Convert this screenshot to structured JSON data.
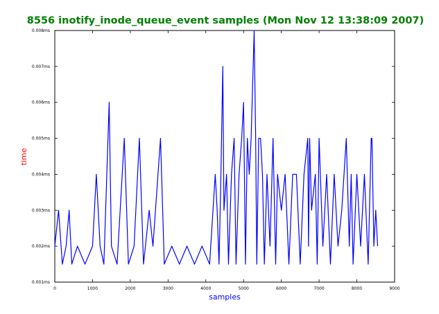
{
  "chart_data": {
    "type": "line",
    "title": "8556 inotify_inode_queue_event samples (Mon Nov 12 13:38:09 2007)",
    "xlabel": "samples",
    "ylabel": "time",
    "xlim": [
      0,
      9000
    ],
    "ylim": [
      0.001,
      0.008
    ],
    "x_ticks": [
      "0",
      "1000",
      "2000",
      "3000",
      "4000",
      "5000",
      "6000",
      "7000",
      "8000",
      "9000"
    ],
    "y_ticks": [
      "0.001ms",
      "0.002ms",
      "0.003ms",
      "0.004ms",
      "0.005ms",
      "0.006ms",
      "0.007ms",
      "0.008ms"
    ],
    "grid": false,
    "colors": {
      "line": "#0000ff",
      "title": "#008000",
      "xlabel": "#0000ff",
      "ylabel": "#ff0000"
    },
    "series": [
      {
        "x": [
          0,
          100,
          200,
          300,
          380,
          450,
          600,
          800,
          1000,
          1100,
          1200,
          1300,
          1440,
          1500,
          1650,
          1840,
          1950,
          2100,
          2240,
          2350,
          2500,
          2600,
          2800,
          2900,
          3100,
          3300,
          3500,
          3700,
          3900,
          4100,
          4250,
          4300,
          4350,
          4400,
          4450,
          4480,
          4550,
          4600,
          4680,
          4750,
          4800,
          4880,
          4950,
          5000,
          5050,
          5100,
          5150,
          5200,
          5280,
          5320,
          5350,
          5400,
          5450,
          5500,
          5550,
          5620,
          5700,
          5780,
          5850,
          5900,
          6000,
          6100,
          6200,
          6300,
          6400,
          6500,
          6600,
          6700,
          6720,
          6750,
          6800,
          6900,
          6950,
          7000,
          7100,
          7200,
          7300,
          7400,
          7500,
          7600,
          7720,
          7800,
          7850,
          7900,
          8000,
          8050,
          8100,
          8200,
          8300,
          8380,
          8400,
          8450,
          8500,
          8550
        ],
        "values": [
          0.002,
          0.003,
          0.0015,
          0.002,
          0.003,
          0.0015,
          0.002,
          0.0015,
          0.002,
          0.004,
          0.002,
          0.0015,
          0.006,
          0.002,
          0.0015,
          0.005,
          0.0015,
          0.002,
          0.005,
          0.0015,
          0.003,
          0.002,
          0.005,
          0.0015,
          0.002,
          0.0015,
          0.002,
          0.0015,
          0.002,
          0.0015,
          0.004,
          0.003,
          0.0015,
          0.004,
          0.007,
          0.003,
          0.004,
          0.0015,
          0.004,
          0.005,
          0.0015,
          0.004,
          0.005,
          0.006,
          0.0015,
          0.005,
          0.004,
          0.005,
          0.008,
          0.005,
          0.0015,
          0.005,
          0.005,
          0.004,
          0.0015,
          0.004,
          0.002,
          0.005,
          0.0015,
          0.004,
          0.003,
          0.004,
          0.0015,
          0.004,
          0.004,
          0.0015,
          0.004,
          0.005,
          0.002,
          0.005,
          0.003,
          0.004,
          0.0015,
          0.005,
          0.002,
          0.004,
          0.0015,
          0.004,
          0.002,
          0.003,
          0.005,
          0.002,
          0.004,
          0.0015,
          0.004,
          0.003,
          0.002,
          0.004,
          0.0015,
          0.005,
          0.005,
          0.002,
          0.003,
          0.002
        ]
      }
    ]
  }
}
